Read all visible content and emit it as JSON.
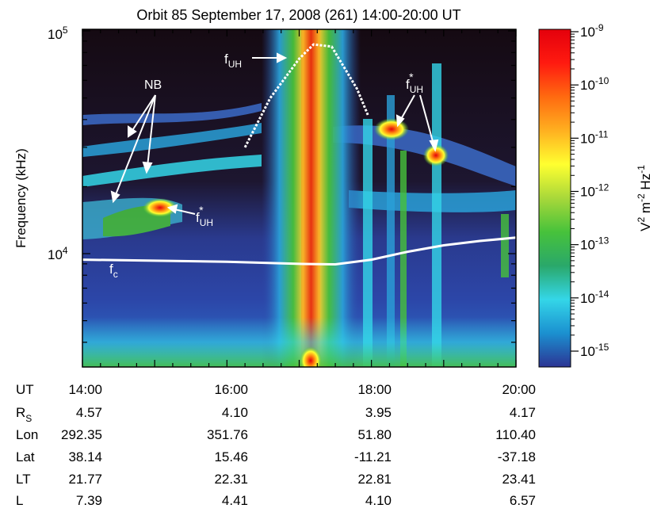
{
  "chart_data": {
    "type": "heatmap",
    "title": "Orbit 85   September 17, 2008 (261)   14:00-20:00 UT",
    "ylabel": "Frequency (kHz)",
    "y_scale": "log",
    "ylim_khz": [
      3,
      100
    ],
    "y_ticks": [
      {
        "value": 10000,
        "base": "10",
        "exp": "4"
      },
      {
        "value": 100000,
        "base": "10",
        "exp": "5"
      }
    ],
    "xlim_ut": [
      "14:00",
      "20:00"
    ],
    "colorbar": {
      "label_base": "V",
      "label_sup1": "2",
      "label_mid": " m",
      "label_sup2": "-2",
      "label_end": " Hz",
      "label_sup3": "-1",
      "scale": "log",
      "range": [
        1e-15,
        1e-09
      ],
      "colors": [
        "#2c3494",
        "#1b90d0",
        "#34d6e8",
        "#2aa86a",
        "#47c23b",
        "#a8d83a",
        "#ffff30",
        "#ffb020",
        "#ff6a10",
        "#ff1a10",
        "#e4000c"
      ],
      "ticks": [
        {
          "exp": "-9"
        },
        {
          "exp": "-10"
        },
        {
          "exp": "-11"
        },
        {
          "exp": "-12"
        },
        {
          "exp": "-13"
        },
        {
          "exp": "-14"
        },
        {
          "exp": "-15"
        }
      ]
    },
    "features": [
      {
        "name": "f_UH upper hybrid",
        "label": "f",
        "sub": "UH",
        "sup": ""
      },
      {
        "name": "f_UH* left",
        "label": "f",
        "sub": "UH",
        "sup": "*"
      },
      {
        "name": "f_UH* right",
        "label": "f",
        "sub": "UH",
        "sup": "*"
      },
      {
        "name": "NB",
        "label": "NB"
      },
      {
        "name": "f_c",
        "label": "f",
        "sub": "c"
      }
    ],
    "fc_line_khz": [
      {
        "ut": 14.0,
        "f": 9400
      },
      {
        "ut": 15.0,
        "f": 9300
      },
      {
        "ut": 16.0,
        "f": 9200
      },
      {
        "ut": 17.0,
        "f": 9000
      },
      {
        "ut": 17.5,
        "f": 8950
      },
      {
        "ut": 18.0,
        "f": 9400
      },
      {
        "ut": 18.5,
        "f": 10200
      },
      {
        "ut": 19.0,
        "f": 10900
      },
      {
        "ut": 19.5,
        "f": 11400
      },
      {
        "ut": 20.0,
        "f": 11800
      }
    ],
    "fuh_line_khz": [
      {
        "ut": 16.25,
        "f": 30000
      },
      {
        "ut": 16.6,
        "f": 50000
      },
      {
        "ut": 17.0,
        "f": 75000
      },
      {
        "ut": 17.2,
        "f": 87000
      },
      {
        "ut": 17.45,
        "f": 85000
      },
      {
        "ut": 17.8,
        "f": 55000
      },
      {
        "ut": 17.95,
        "f": 42000
      }
    ],
    "ephemeris": {
      "row_labels": [
        {
          "main": "UT",
          "sub": ""
        },
        {
          "main": "R",
          "sub": "S"
        },
        {
          "main": "Lon",
          "sub": ""
        },
        {
          "main": "Lat",
          "sub": ""
        },
        {
          "main": "LT",
          "sub": ""
        },
        {
          "main": "L",
          "sub": ""
        }
      ],
      "columns": [
        {
          "ut": 14.0,
          "values": [
            "14:00",
            "4.57",
            "292.35",
            "38.14",
            "21.77",
            "7.39"
          ]
        },
        {
          "ut": 16.0,
          "values": [
            "16:00",
            "4.10",
            "351.76",
            "15.46",
            "22.31",
            "4.41"
          ]
        },
        {
          "ut": 18.0,
          "values": [
            "18:00",
            "3.95",
            "51.80",
            "-11.21",
            "22.81",
            "4.10"
          ]
        },
        {
          "ut": 20.0,
          "values": [
            "20:00",
            "4.17",
            "110.40",
            "-37.18",
            "23.41",
            "6.57"
          ]
        }
      ]
    }
  }
}
